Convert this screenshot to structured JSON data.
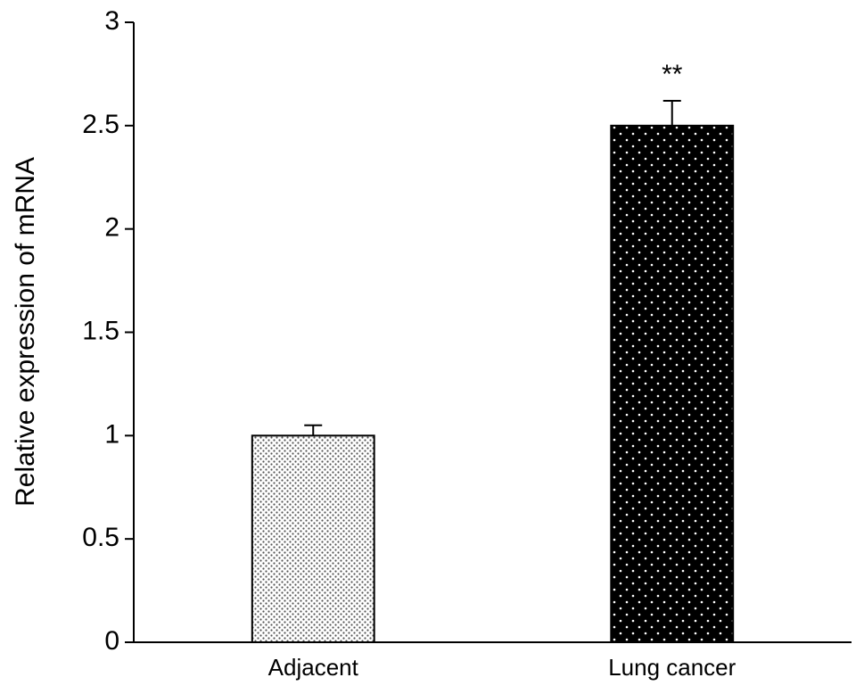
{
  "chart_data": {
    "type": "bar",
    "y_label": "Relative expression of mRNA",
    "categories": [
      "Adjacent",
      "Lung cancer"
    ],
    "values": [
      1.0,
      2.5
    ],
    "errors": [
      0.05,
      0.12
    ],
    "colors": [
      "#ffffff",
      "#000000"
    ],
    "annotations": [
      {
        "category": "Lung cancer",
        "text": "**"
      }
    ],
    "ylim": [
      0,
      3
    ],
    "yticks": [
      0,
      0.5,
      1,
      1.5,
      2,
      2.5,
      3
    ],
    "grid": false
  }
}
